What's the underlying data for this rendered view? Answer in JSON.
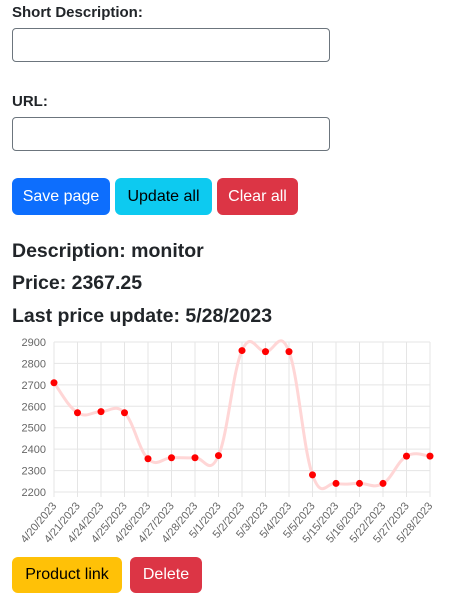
{
  "form": {
    "short_description_label": "Short Description:",
    "short_description_value": "",
    "url_label": "URL:",
    "url_value": ""
  },
  "buttons": {
    "save": "Save page",
    "update_all": "Update all",
    "clear_all": "Clear all",
    "product_link": "Product link",
    "delete": "Delete"
  },
  "product": {
    "description": "Description: monitor",
    "price": "Price: 2367.25",
    "last_update": "Last price update: 5/28/2023"
  },
  "colors": {
    "primary": "#0d6efd",
    "info": "#0dcaf0",
    "danger": "#dc3545",
    "warning": "#ffc107",
    "line": "#ffd6d6",
    "point": "#ff0000"
  },
  "chart_data": {
    "type": "line",
    "title": "",
    "xlabel": "",
    "ylabel": "",
    "categories": [
      "4/20/2023",
      "4/21/2023",
      "4/24/2023",
      "4/25/2023",
      "4/26/2023",
      "4/27/2023",
      "4/28/2023",
      "5/1/2023",
      "5/2/2023",
      "5/3/2023",
      "5/4/2023",
      "5/5/2023",
      "5/15/2023",
      "5/16/2023",
      "5/22/2023",
      "5/27/2023",
      "5/28/2023"
    ],
    "values": [
      2710,
      2570,
      2575,
      2570,
      2355,
      2360,
      2360,
      2370,
      2860,
      2855,
      2855,
      2280,
      2240,
      2240,
      2240,
      2367.25,
      2367.25
    ],
    "yticks": [
      2200,
      2300,
      2400,
      2500,
      2600,
      2700,
      2800,
      2900
    ],
    "ylim": [
      2200,
      2900
    ],
    "grid": true,
    "legend": "none"
  }
}
